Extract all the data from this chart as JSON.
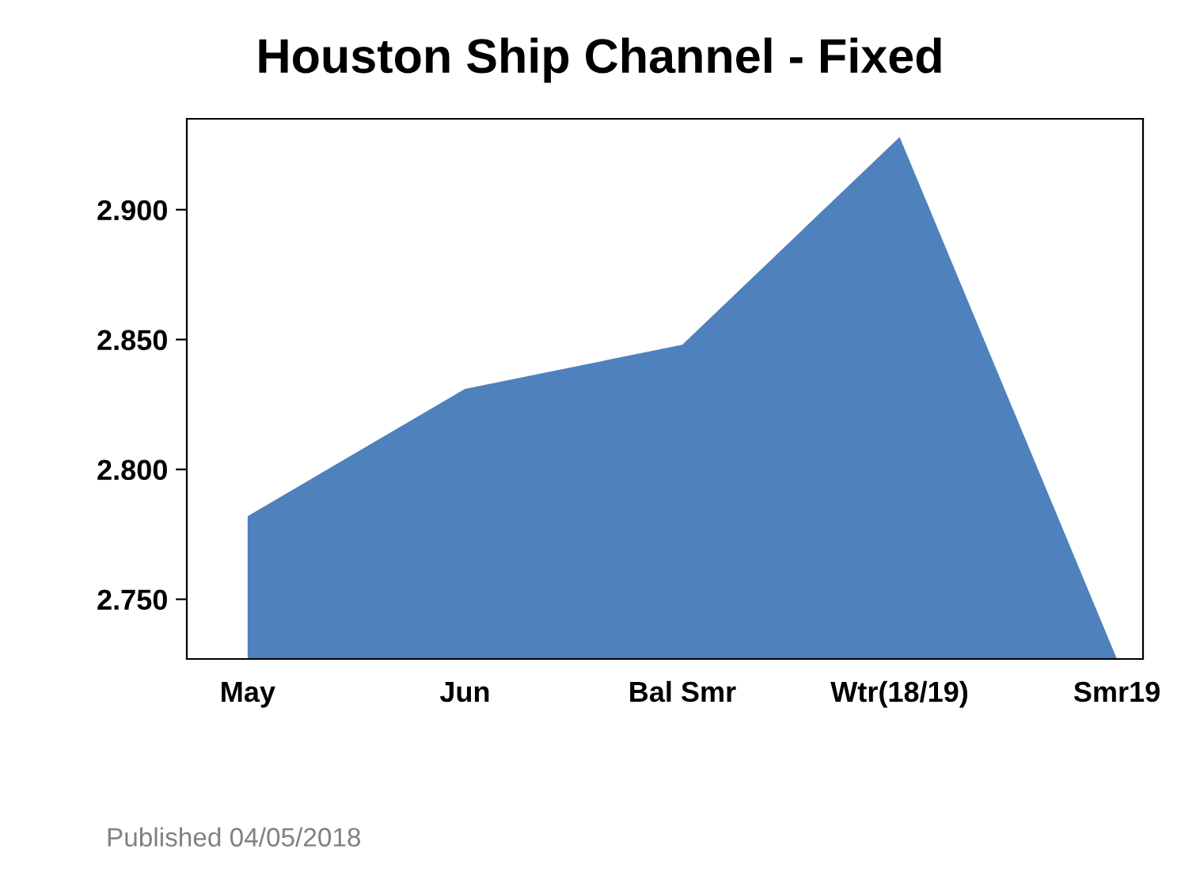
{
  "chart_data": {
    "type": "area",
    "title": "Houston Ship Channel - Fixed",
    "categories": [
      "May",
      "Jun",
      "Bal Smr",
      "Wtr(18/19)",
      "Smr19"
    ],
    "values": [
      2.782,
      2.831,
      2.848,
      2.928,
      2.727
    ],
    "color": "#4f81bd",
    "ylim": [
      2.727,
      2.935
    ],
    "yticks": [
      {
        "value": 2.75,
        "label": "2.750"
      },
      {
        "value": 2.8,
        "label": "2.800"
      },
      {
        "value": 2.85,
        "label": "2.850"
      },
      {
        "value": 2.9,
        "label": "2.900"
      }
    ],
    "grid": false,
    "annotations": [
      "Published 04/05/2018"
    ]
  }
}
